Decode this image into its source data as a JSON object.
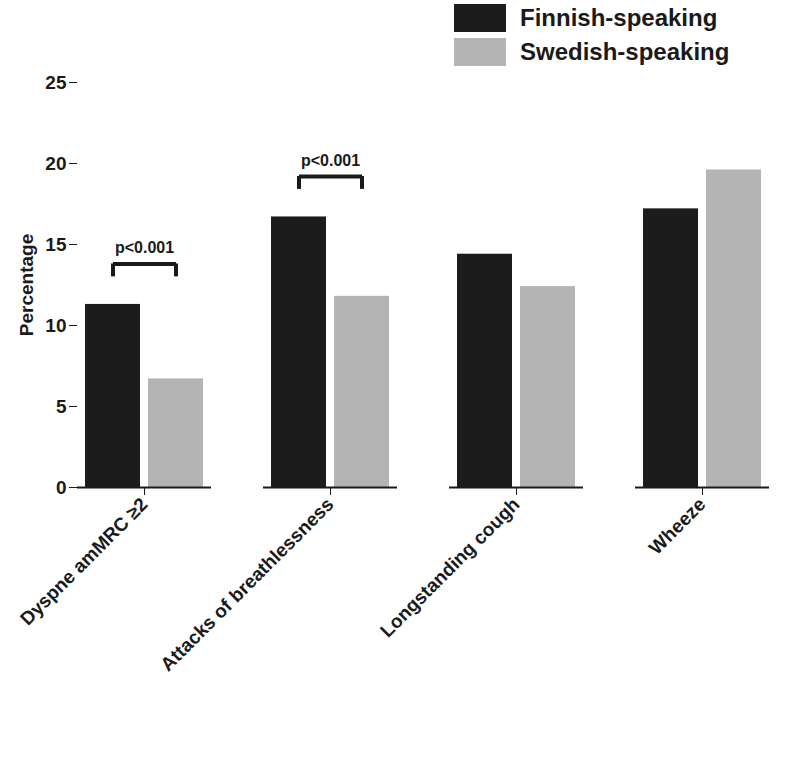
{
  "chart_data": {
    "type": "bar",
    "categories": [
      "Dyspne amMRC ≥2",
      "Attacks of breathlessness",
      "Longstanding cough",
      "Wheeze"
    ],
    "series": [
      {
        "name": "Finnish-speaking",
        "color": "#1c1c1c",
        "values": [
          11.3,
          16.7,
          14.4,
          17.2
        ]
      },
      {
        "name": "Swedish-speaking",
        "color": "#b4b4b4",
        "values": [
          6.7,
          11.8,
          12.4,
          19.6
        ]
      }
    ],
    "y_label": "Percentage",
    "ylim": [
      0,
      25
    ],
    "yticks": [
      0,
      5,
      10,
      15,
      20,
      25
    ],
    "legend": "top-right",
    "grid": false,
    "annotations": [
      {
        "text": "p<0.001",
        "category": "Dyspne amMRC ≥2"
      },
      {
        "text": "p<0.001",
        "category": "Attacks of breathlessness"
      }
    ]
  }
}
